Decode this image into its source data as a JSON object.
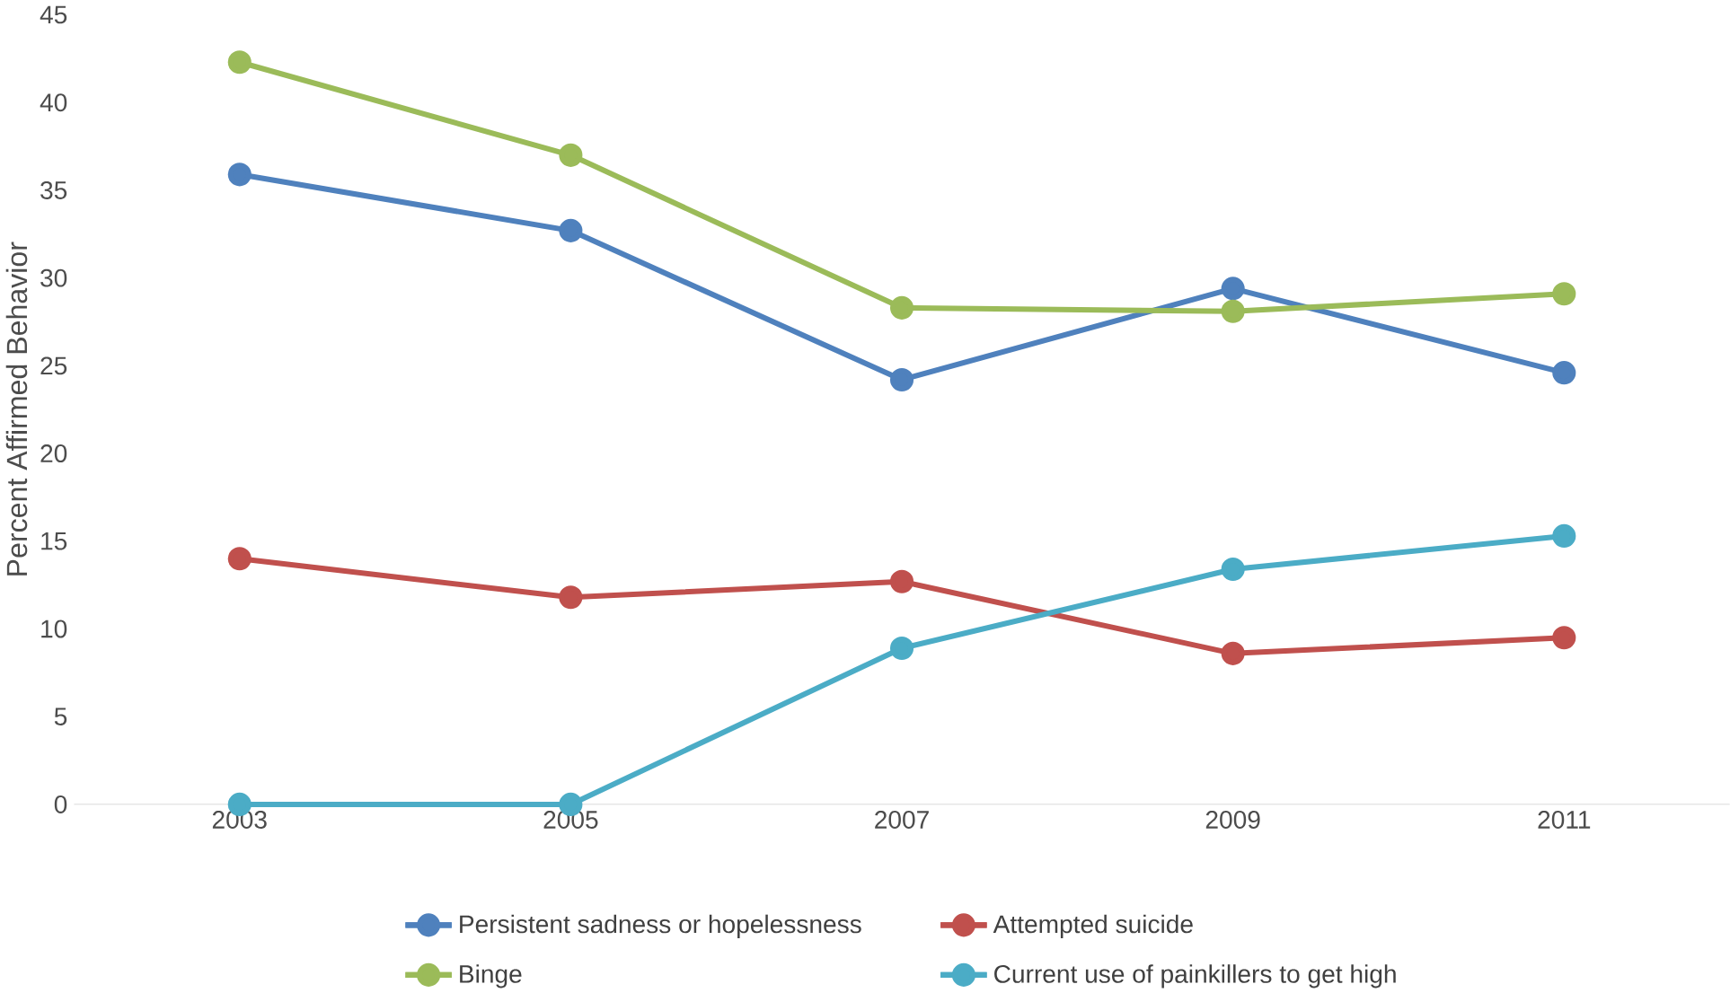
{
  "chart_data": {
    "type": "line",
    "ylabel": "Percent Affirmed Behavior",
    "categories": [
      "2003",
      "2005",
      "2007",
      "2009",
      "2011"
    ],
    "series": [
      {
        "name": "Persistent sadness or hopelessness",
        "color": "#4f81bd",
        "values": [
          35.9,
          32.7,
          24.2,
          29.4,
          24.6
        ]
      },
      {
        "name": "Attempted suicide",
        "color": "#c0504d",
        "values": [
          14.0,
          11.8,
          12.7,
          8.6,
          9.5
        ]
      },
      {
        "name": "Binge",
        "color": "#9bbb59",
        "values": [
          42.3,
          37.0,
          28.3,
          28.1,
          29.1
        ]
      },
      {
        "name": "Current use of painkillers to get high",
        "color": "#4bacc6",
        "values": [
          0,
          0,
          8.9,
          13.4,
          15.3
        ]
      }
    ],
    "ylim": [
      0,
      45
    ],
    "yticks": [
      0,
      5,
      10,
      15,
      20,
      25,
      30,
      35,
      40,
      45
    ],
    "grid": false,
    "legend": "bottom",
    "marker": "circle",
    "line_style": "solid"
  }
}
